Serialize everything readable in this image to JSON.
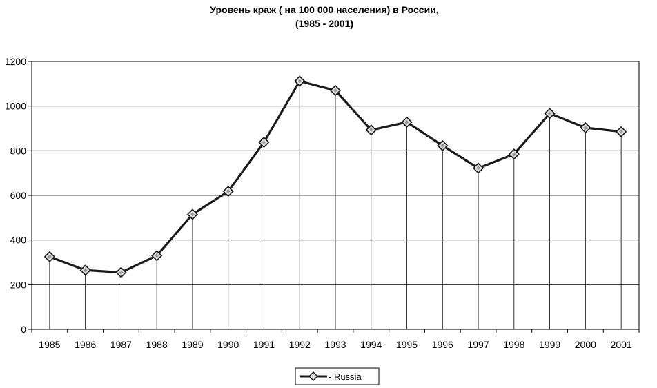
{
  "chart_data": {
    "type": "line",
    "title": "Уровень краж ( на 100 000 населения) в России,",
    "subtitle": "(1985 - 2001)",
    "xlabel": "",
    "ylabel": "",
    "categories": [
      "1985",
      "1986",
      "1987",
      "1988",
      "1989",
      "1990",
      "1991",
      "1992",
      "1993",
      "1994",
      "1995",
      "1996",
      "1997",
      "1998",
      "1999",
      "2000",
      "2001"
    ],
    "series": [
      {
        "name": "- Russia",
        "values": [
          325,
          265,
          255,
          330,
          515,
          618,
          838,
          1112,
          1070,
          893,
          928,
          823,
          722,
          785,
          967,
          903,
          885
        ]
      }
    ],
    "ylim": [
      0,
      1200
    ],
    "yticks": [
      0,
      200,
      400,
      600,
      800,
      1000,
      1200
    ],
    "grid": "horizontal",
    "drop_lines": true,
    "legend": "bottom-center",
    "marker": "diamond",
    "colors": {
      "line": "#1a1a1a",
      "marker_fill": "#e0e0e0",
      "grid": "#000000",
      "background": "#ffffff"
    }
  }
}
